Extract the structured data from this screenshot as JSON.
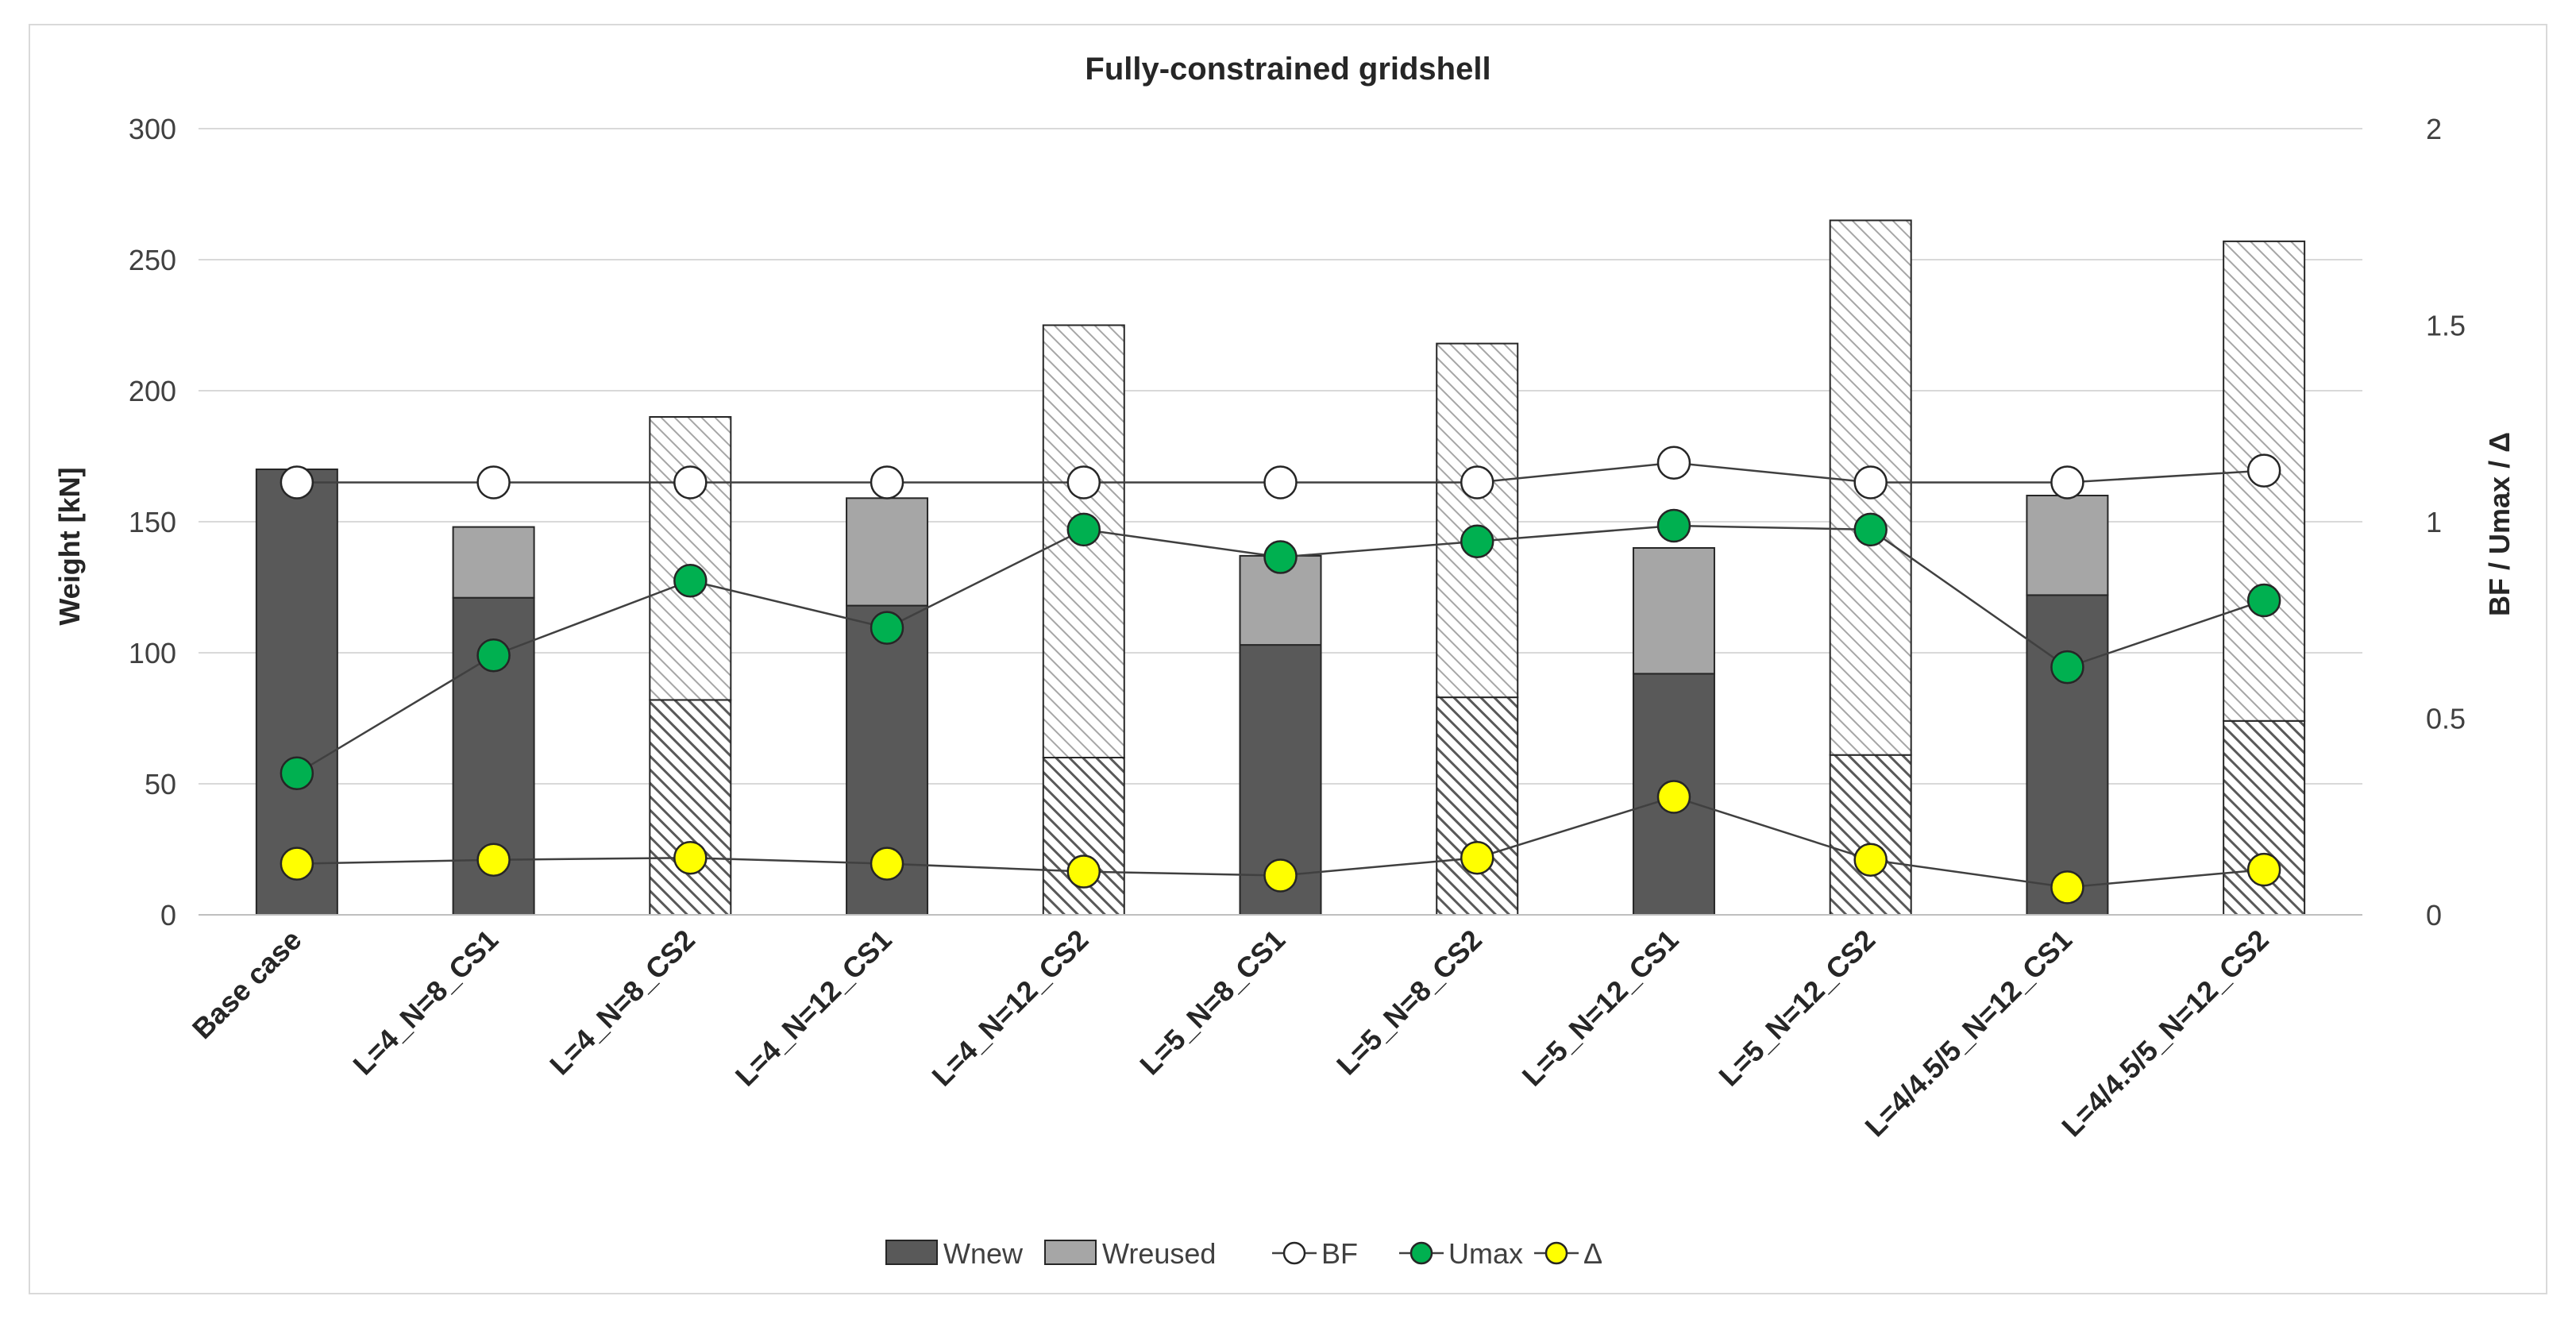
{
  "chart_data": {
    "type": "bar",
    "title": "Fully-constrained gridshell",
    "ylabel": "Weight [kN]",
    "y2label": "BF / Umax / Δ",
    "ylim": [
      0,
      300
    ],
    "y2lim": [
      0,
      2
    ],
    "yticks": [
      "0",
      "50",
      "100",
      "150",
      "200",
      "250",
      "300"
    ],
    "y2ticks": [
      "0",
      "0.5",
      "1",
      "1.5",
      "2"
    ],
    "grid": true,
    "legend_position": "bottom",
    "categories": [
      "Base case",
      "L=4_N=8_CS1",
      "L=4_N=8_CS2",
      "L=4_N=12_CS1",
      "L=4_N=12_CS2",
      "L=5_N=8_CS1",
      "L=5_N=8_CS2",
      "L=5_N=12_CS1",
      "L=5_N=12_CS2",
      "L=4/4.5/5_N=12_CS1",
      "L=4/4.5/5_N=12_CS2"
    ],
    "hatched": [
      false,
      false,
      true,
      false,
      true,
      false,
      true,
      false,
      true,
      false,
      true
    ],
    "series": [
      {
        "name": "Wnew",
        "kind": "bar",
        "axis": "left",
        "color": "#595959",
        "values": [
          170,
          121,
          82,
          118,
          60,
          103,
          83,
          92,
          61,
          122,
          74
        ]
      },
      {
        "name": "Wreused",
        "kind": "bar",
        "axis": "left",
        "color": "#a6a6a6",
        "values": [
          0,
          27,
          108,
          41,
          165,
          34,
          135,
          48,
          204,
          38,
          183
        ]
      },
      {
        "name": "BF",
        "kind": "line",
        "axis": "right",
        "color": "#ffffff",
        "values": [
          1.1,
          1.1,
          1.1,
          1.1,
          1.1,
          1.1,
          1.1,
          1.15,
          1.1,
          1.1,
          1.13
        ]
      },
      {
        "name": "Umax",
        "kind": "line",
        "axis": "right",
        "color": "#00b050",
        "values": [
          0.36,
          0.66,
          0.85,
          0.73,
          0.98,
          0.91,
          0.95,
          0.99,
          0.98,
          0.63,
          0.8
        ]
      },
      {
        "name": "Δ",
        "kind": "line",
        "axis": "right",
        "color": "#ffff00",
        "values": [
          0.13,
          0.14,
          0.145,
          0.13,
          0.11,
          0.1,
          0.145,
          0.3,
          0.14,
          0.07,
          0.115
        ]
      }
    ]
  }
}
